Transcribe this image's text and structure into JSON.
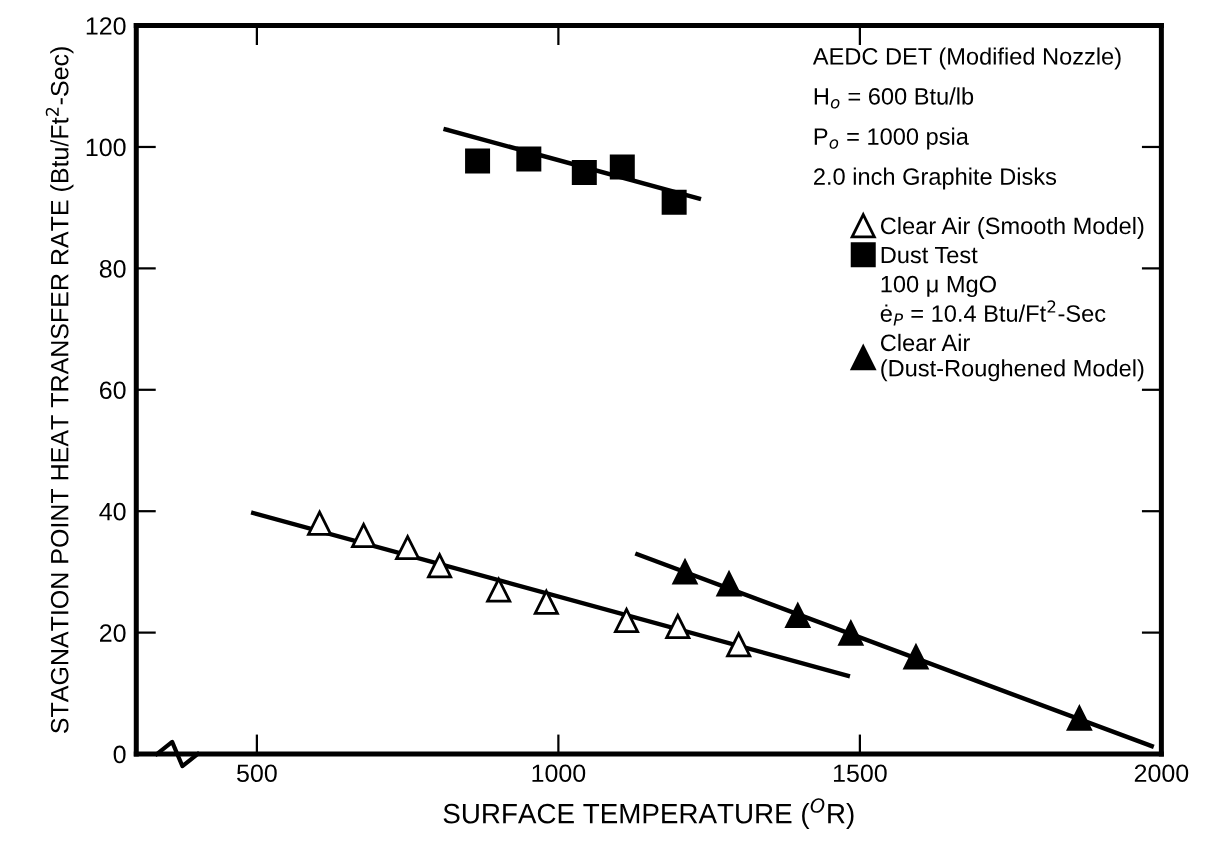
{
  "chart_data": {
    "type": "scatter",
    "xlabel": "SURFACE TEMPERATURE ($^{O}$R)",
    "ylabel": "STAGNATION POINT HEAT TRANSFER RATE (Btu/Ft$^{2}$-Sec)",
    "xlim": [
      300,
      2000
    ],
    "xticks": [
      500,
      1000,
      1500,
      2000
    ],
    "ylim": [
      0,
      120
    ],
    "yticks": [
      0,
      20,
      40,
      60,
      80,
      100,
      120
    ],
    "grid": false,
    "legend": "top right",
    "annotations": [
      "AEDC DET (Modified Nozzle)",
      "H$_{o}$ = 600 Btu/lb",
      "P$_{o}$ = 1000 psia",
      "2.0 inch Graphite Disks",
      "100 μ MgO\nė$_{P}$ = 10.4 Btu/Ft$^{2}$-Sec"
    ],
    "series": [
      {
        "name": "Clear Air (Smooth Model)",
        "marker": "triangle",
        "color": "#ffffff",
        "x": [
          604,
          677,
          750,
          803,
          901,
          980,
          1113,
          1198,
          1299
        ],
        "values": [
          38,
          36,
          34,
          31,
          27,
          25,
          22,
          21,
          18
        ]
      },
      {
        "name": "Dust Test",
        "marker": "square",
        "color": "#000000",
        "x": [
          866,
          951,
          1043,
          1106,
          1192
        ],
        "values": [
          97.7,
          98,
          95.8,
          96.7,
          90.9
        ]
      },
      {
        "name": "Clear Air (Dust-Roughened Model)",
        "marker": "triangle",
        "color": "#000000",
        "x": [
          1210,
          1283,
          1397,
          1485,
          1593,
          1864
        ],
        "values": [
          30,
          28,
          22.8,
          19.9,
          16,
          5.9
        ]
      },
      {
        "type": "line",
        "color": "#000000",
        "line_style": "solid",
        "marker": "none",
        "x": [
          494,
          1480
        ],
        "values": [
          39.7,
          12.9
        ]
      },
      {
        "type": "line",
        "color": "#000000",
        "line_style": "solid",
        "marker": "none",
        "x": [
          813,
          1233
        ],
        "values": [
          102.9,
          91.5
        ]
      },
      {
        "type": "line",
        "color": "#000000",
        "line_style": "solid",
        "marker": "none",
        "x": [
          1131,
          1984
        ],
        "values": [
          32.9,
          1.3
        ]
      }
    ]
  }
}
